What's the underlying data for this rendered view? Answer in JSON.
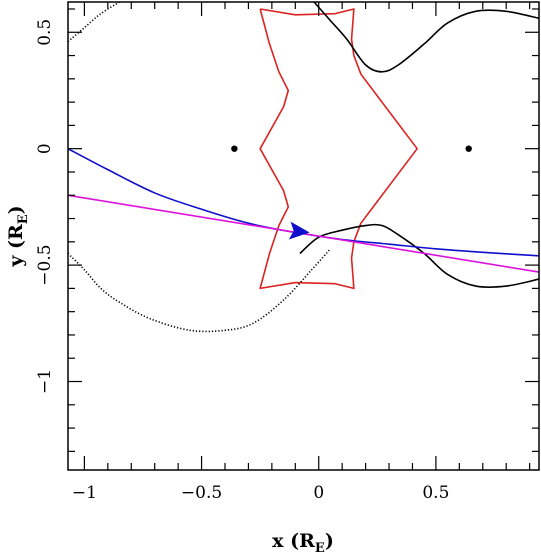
{
  "chart_data": {
    "type": "line",
    "title": "",
    "xlabel": {
      "prefix": "x (R",
      "sub": "E",
      "suffix": ")"
    },
    "ylabel": {
      "prefix": "y (R",
      "sub": "E",
      "suffix": ")"
    },
    "xlim": [
      -1.07,
      0.94
    ],
    "ylim": [
      -1.38,
      0.63
    ],
    "x_ticks": [
      {
        "value": -1,
        "label": "−1"
      },
      {
        "value": -0.5,
        "label": "−0.5"
      },
      {
        "value": 0,
        "label": "0"
      },
      {
        "value": 0.5,
        "label": "0.5"
      }
    ],
    "y_ticks": [
      {
        "value": 0.5,
        "label": "0.5"
      },
      {
        "value": 0,
        "label": "0"
      },
      {
        "value": -0.5,
        "label": "−0.5"
      },
      {
        "value": -1,
        "label": "−1"
      }
    ],
    "grid": false,
    "series": [
      {
        "kind": "caustic",
        "color": "#dd2222",
        "points": [
          [
            -0.25,
            0.6
          ],
          [
            -0.21,
            0.45
          ],
          [
            -0.17,
            0.33
          ],
          [
            -0.13,
            0.25
          ],
          [
            -0.15,
            0.18
          ],
          [
            -0.25,
            0.0
          ],
          [
            -0.15,
            -0.18
          ],
          [
            -0.13,
            -0.25
          ],
          [
            -0.17,
            -0.33
          ],
          [
            -0.21,
            -0.45
          ],
          [
            -0.25,
            -0.6
          ],
          [
            -0.1,
            -0.575
          ],
          [
            0.07,
            -0.58
          ],
          [
            0.15,
            -0.6
          ],
          [
            0.14,
            -0.47
          ],
          [
            0.15,
            -0.4
          ],
          [
            0.18,
            -0.32
          ],
          [
            0.42,
            0.0
          ],
          [
            0.18,
            0.32
          ],
          [
            0.15,
            0.4
          ],
          [
            0.14,
            0.47
          ],
          [
            0.15,
            0.6
          ],
          [
            0.07,
            0.58
          ],
          [
            -0.1,
            0.575
          ],
          [
            -0.25,
            0.6
          ]
        ]
      },
      {
        "kind": "critical-curve-upper",
        "color": "#000000",
        "points": [
          [
            -0.02,
            0.63
          ],
          [
            0.05,
            0.55
          ],
          [
            0.12,
            0.47
          ],
          [
            0.2,
            0.36
          ],
          [
            0.27,
            0.33
          ],
          [
            0.34,
            0.36
          ],
          [
            0.45,
            0.45
          ],
          [
            0.55,
            0.54
          ],
          [
            0.67,
            0.59
          ],
          [
            0.8,
            0.59
          ],
          [
            0.94,
            0.56
          ]
        ]
      },
      {
        "kind": "critical-curve-lower",
        "color": "#000000",
        "points": [
          [
            -0.08,
            -0.45
          ],
          [
            0.0,
            -0.38
          ],
          [
            0.1,
            -0.35
          ],
          [
            0.2,
            -0.33
          ],
          [
            0.27,
            -0.33
          ],
          [
            0.34,
            -0.37
          ],
          [
            0.45,
            -0.45
          ],
          [
            0.55,
            -0.54
          ],
          [
            0.67,
            -0.59
          ],
          [
            0.8,
            -0.59
          ],
          [
            0.94,
            -0.56
          ]
        ]
      },
      {
        "kind": "critical-curve-dotted-upper",
        "color": "#000000",
        "dashed": true,
        "points": [
          [
            -0.85,
            0.63
          ],
          [
            -0.93,
            0.58
          ],
          [
            -1.0,
            0.52
          ],
          [
            -1.07,
            0.46
          ]
        ]
      },
      {
        "kind": "critical-curve-dotted-lower",
        "color": "#000000",
        "dashed": true,
        "points": [
          [
            -1.07,
            -0.45
          ],
          [
            -1.0,
            -0.52
          ],
          [
            -0.93,
            -0.6
          ],
          [
            -0.85,
            -0.66
          ],
          [
            -0.72,
            -0.73
          ],
          [
            -0.55,
            -0.78
          ],
          [
            -0.4,
            -0.78
          ],
          [
            -0.28,
            -0.75
          ],
          [
            -0.15,
            -0.65
          ],
          [
            -0.03,
            -0.52
          ],
          [
            0.05,
            -0.43
          ]
        ]
      },
      {
        "kind": "trajectory-blue",
        "color": "#1010cc",
        "points": [
          [
            -1.07,
            0.0
          ],
          [
            -0.9,
            -0.09
          ],
          [
            -0.7,
            -0.19
          ],
          [
            -0.5,
            -0.26
          ],
          [
            -0.3,
            -0.32
          ],
          [
            -0.1,
            -0.36
          ],
          [
            0.1,
            -0.39
          ],
          [
            0.3,
            -0.41
          ],
          [
            0.5,
            -0.43
          ],
          [
            0.7,
            -0.445
          ],
          [
            0.94,
            -0.46
          ]
        ]
      },
      {
        "kind": "trajectory-magenta",
        "color": "#dd11dd",
        "points": [
          [
            -1.07,
            -0.2
          ],
          [
            0.94,
            -0.53
          ]
        ]
      }
    ],
    "lenses": [
      {
        "x": -0.36,
        "y": 0.0
      },
      {
        "x": 0.64,
        "y": 0.0
      }
    ],
    "arrow": {
      "x": -0.09,
      "y": -0.355,
      "direction": [
        1,
        -0.1
      ],
      "color": "#1010cc"
    }
  }
}
